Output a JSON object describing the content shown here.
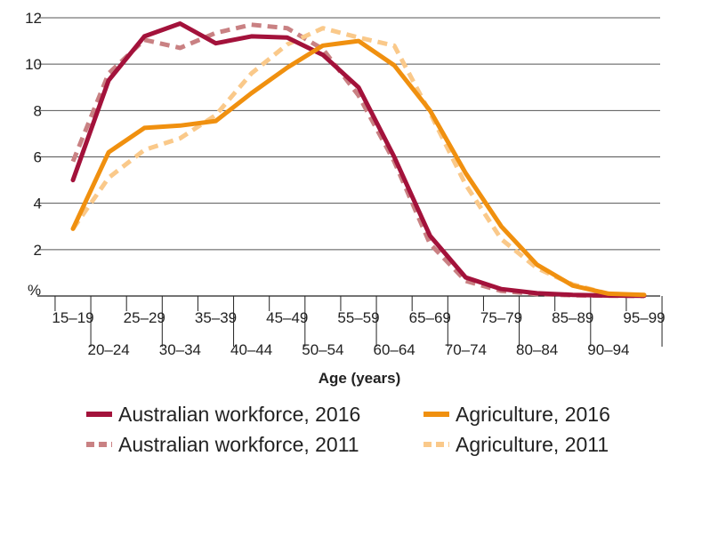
{
  "chart_data": {
    "type": "line",
    "xlabel": "Age (years)",
    "ylabel": "%",
    "ylim": [
      0,
      12
    ],
    "yticks": [
      "",
      "2",
      "4",
      "6",
      "8",
      "10",
      "12"
    ],
    "grid": true,
    "legend_position": "bottom",
    "categories": [
      "15–19",
      "20–24",
      "25–29",
      "30–34",
      "35–39",
      "40–44",
      "45–49",
      "50–54",
      "55–59",
      "60–64",
      "65–69",
      "70–74",
      "75–79",
      "80–84",
      "85–89",
      "90–94",
      "95–99"
    ],
    "series": [
      {
        "name": "Australian workforce, 2016",
        "color": "#a3123b",
        "dash": false,
        "values": [
          5.0,
          9.3,
          11.2,
          11.75,
          10.9,
          11.2,
          11.15,
          10.4,
          9.0,
          6.0,
          2.6,
          0.8,
          0.3,
          0.12,
          0.05,
          0.02,
          0.01
        ]
      },
      {
        "name": "Agriculture, 2016",
        "color": "#f0900f",
        "dash": false,
        "values": [
          2.9,
          6.2,
          7.25,
          7.35,
          7.55,
          8.75,
          9.85,
          10.8,
          11.0,
          9.95,
          8.0,
          5.3,
          3.0,
          1.35,
          0.45,
          0.1,
          0.05
        ]
      },
      {
        "name": "Australian workforce, 2011",
        "color": "#c98183",
        "dash": true,
        "values": [
          5.8,
          9.6,
          11.05,
          10.7,
          11.35,
          11.7,
          11.55,
          10.65,
          8.65,
          5.8,
          2.25,
          0.65,
          0.22,
          0.08,
          0.03,
          0.01,
          0.0
        ]
      },
      {
        "name": "Agriculture, 2011",
        "color": "#fac98a",
        "dash": true,
        "values": [
          2.9,
          5.1,
          6.3,
          6.8,
          7.8,
          9.6,
          10.85,
          11.55,
          11.15,
          10.8,
          7.9,
          4.8,
          2.45,
          1.2,
          0.5,
          0.1,
          0.03
        ]
      }
    ]
  }
}
